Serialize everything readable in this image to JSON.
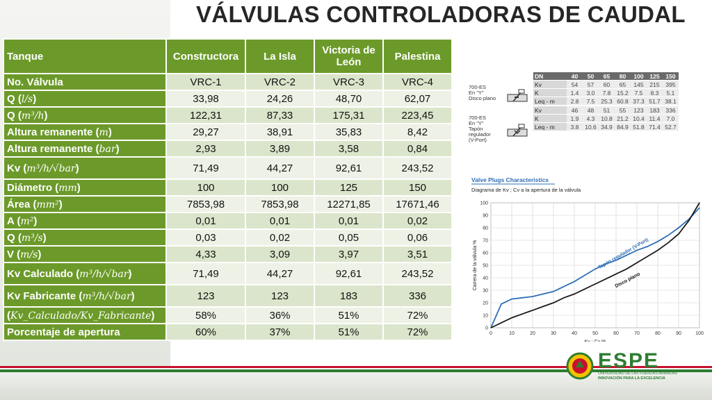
{
  "title": "VÁLVULAS CONTROLADORAS DE CAUDAL",
  "table": {
    "header": {
      "label": "Tanque",
      "columns": [
        "Constructora",
        "La Isla",
        "Victoria de León",
        "Palestina"
      ]
    },
    "rows": [
      {
        "label": "No. Válvula",
        "unit": "",
        "values": [
          "VRC-1",
          "VRC-2",
          "VRC-3",
          "VRC-4"
        ]
      },
      {
        "label": "Q (",
        "unit": "l/s",
        "values": [
          "33,98",
          "24,26",
          "48,70",
          "62,07"
        ]
      },
      {
        "label": "Q (",
        "unit": "m³/h",
        "values": [
          "122,31",
          "87,33",
          "175,31",
          "223,45"
        ]
      },
      {
        "label": "Altura remanente (",
        "unit": "m",
        "values": [
          "29,27",
          "38,91",
          "35,83",
          "8,42"
        ]
      },
      {
        "label": "Altura remanente (",
        "unit": "bar",
        "values": [
          "2,93",
          "3,89",
          "3,58",
          "0,84"
        ]
      },
      {
        "label": "Kv (",
        "unit": "m³/h/√bar",
        "values": [
          "71,49",
          "44,27",
          "92,61",
          "243,52"
        ]
      },
      {
        "label": "Diámetro (",
        "unit": "mm",
        "values": [
          "100",
          "100",
          "125",
          "150"
        ]
      },
      {
        "label": "Área (",
        "unit": "mm²",
        "values": [
          "7853,98",
          "7853,98",
          "12271,85",
          "17671,46"
        ]
      },
      {
        "label": "A (",
        "unit": "m²",
        "values": [
          "0,01",
          "0,01",
          "0,01",
          "0,02"
        ]
      },
      {
        "label": "Q (",
        "unit": "m³/s",
        "values": [
          "0,03",
          "0,02",
          "0,05",
          "0,06"
        ]
      },
      {
        "label": "V (",
        "unit": "m/s",
        "values": [
          "4,33",
          "3,09",
          "3,97",
          "3,51"
        ]
      },
      {
        "label": "Kv Calculado (",
        "unit": "m³/h/√bar",
        "values": [
          "71,49",
          "44,27",
          "92,61",
          "243,52"
        ]
      },
      {
        "label": "Kv Fabricante (",
        "unit": "m³/h/√bar",
        "values": [
          "123",
          "123",
          "183",
          "336"
        ]
      },
      {
        "label": "(",
        "unit": "Kv_Calculado/Kv_Fabricante",
        "values": [
          "58%",
          "36%",
          "51%",
          "72%"
        ]
      },
      {
        "label": "Porcentaje de apertura",
        "unit": "",
        "values": [
          "60%",
          "37%",
          "51%",
          "72%"
        ]
      }
    ]
  },
  "spec_table": {
    "columns": [
      "DN",
      "40",
      "50",
      "65",
      "80",
      "100",
      "125",
      "150"
    ],
    "groups": [
      {
        "label_lines": [
          "700-ES",
          "En \"Y\"",
          "Disco plano"
        ],
        "rows": [
          {
            "key": "Kv",
            "values": [
              "54",
              "57",
              "60",
              "65",
              "145",
              "215",
              "395"
            ]
          },
          {
            "key": "K",
            "values": [
              "1.4",
              "3.0",
              "7.8",
              "15.2",
              "7.5",
              "8.3",
              "5.1"
            ]
          },
          {
            "key": "Leq - m",
            "values": [
              "2.8",
              "7.5",
              "25.3",
              "60.8",
              "37.3",
              "51.7",
              "38.1"
            ]
          }
        ]
      },
      {
        "label_lines": [
          "700-ES",
          "En \"Y\"",
          "Tapón",
          "regulador",
          "(V-Port)"
        ],
        "rows": [
          {
            "key": "Kv",
            "values": [
              "46",
              "48",
              "51",
              "55",
              "123",
              "183",
              "336"
            ]
          },
          {
            "key": "K",
            "values": [
              "1.9",
              "4.3",
              "10.8",
              "21.2",
              "10.4",
              "11.4",
              "7.0"
            ]
          },
          {
            "key": "Leq - m",
            "values": [
              "3.8",
              "10.6",
              "34.9",
              "84.9",
              "51.8",
              "71.4",
              "52.7"
            ]
          }
        ]
      }
    ]
  },
  "chart_data": {
    "type": "line",
    "title": "Valve Plugs Characteristics",
    "subtitle": "Diagrama de Kv ; Cv a la apertura de la válvula",
    "xlabel": "Kv ; Cv %",
    "ylabel": "Carrera de la válvula %",
    "xlim": [
      0,
      100
    ],
    "ylim": [
      0,
      100
    ],
    "xticks": [
      0,
      10,
      20,
      30,
      40,
      50,
      60,
      70,
      80,
      90,
      100
    ],
    "yticks": [
      0,
      10,
      20,
      30,
      40,
      50,
      60,
      70,
      80,
      90,
      100
    ],
    "grid": true,
    "series": [
      {
        "name": "Tapón regulador (V-Port)",
        "color": "#2e6db5",
        "x": [
          0,
          5,
          10,
          15,
          20,
          25,
          30,
          35,
          40,
          45,
          50,
          55,
          60,
          65,
          70,
          75,
          80,
          85,
          90,
          95,
          100
        ],
        "y": [
          0,
          19,
          23,
          24,
          25,
          27,
          29,
          33,
          37,
          42,
          47,
          51,
          54,
          58,
          62,
          65,
          69,
          74,
          80,
          87,
          96
        ]
      },
      {
        "name": "Disco plano",
        "color": "#1a1a1a",
        "x": [
          0,
          5,
          10,
          15,
          20,
          25,
          30,
          35,
          40,
          45,
          50,
          55,
          60,
          65,
          70,
          75,
          80,
          85,
          90,
          95,
          100
        ],
        "y": [
          0,
          4,
          8,
          11,
          14,
          17,
          20,
          24,
          27,
          31,
          35,
          39,
          43,
          47,
          52,
          57,
          62,
          68,
          75,
          86,
          100
        ]
      }
    ]
  },
  "logo": {
    "name": "ESPE",
    "tagline1": "UNIVERSIDAD DE LAS FUERZAS ARMADAS",
    "tagline2": "INNOVACIÓN PARA LA EXCELENCIA"
  },
  "colors": {
    "accent": "#6c9a2a",
    "cell": "#dbe5cb",
    "stripe_red": "#c8102e",
    "stripe_green": "#2e7d32"
  }
}
